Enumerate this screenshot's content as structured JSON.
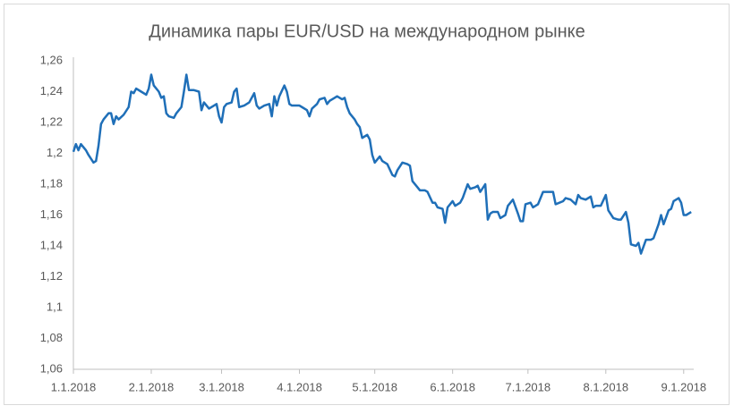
{
  "chart_data": {
    "type": "line",
    "title": "Динамика пары EUR/USD на международном рынке",
    "x": [
      0,
      1,
      2,
      3,
      5,
      6,
      8,
      9,
      10,
      11,
      12,
      14,
      15,
      16,
      17,
      18,
      20,
      22,
      23,
      24,
      25,
      27,
      29,
      30,
      31,
      32,
      34,
      35,
      36,
      37,
      38,
      40,
      41,
      43,
      44,
      45,
      46,
      48,
      50,
      51,
      52,
      54,
      56,
      57,
      58,
      59,
      60,
      61,
      63,
      64,
      65,
      66,
      68,
      70,
      72,
      73,
      74,
      76,
      78,
      79,
      80,
      81,
      82,
      84,
      85,
      86,
      87,
      90,
      91,
      93,
      94,
      95,
      97,
      98,
      100,
      101,
      102,
      104,
      105,
      107,
      108,
      109,
      110,
      112,
      113,
      114,
      115,
      117,
      118,
      119,
      120,
      122,
      123,
      125,
      127,
      128,
      129,
      131,
      133,
      134,
      135,
      137,
      138,
      140,
      141,
      143,
      144,
      145,
      147,
      148,
      149,
      151,
      152,
      154,
      155,
      157,
      158,
      160,
      161,
      162,
      164,
      165,
      166,
      167,
      169,
      170,
      172,
      173,
      175,
      177,
      178,
      179,
      180,
      182,
      183,
      185,
      187,
      189,
      191,
      192,
      195,
      196,
      198,
      200,
      201,
      202,
      204,
      206,
      207,
      208,
      210,
      212,
      213,
      215,
      217,
      218,
      220,
      221,
      222,
      224,
      225,
      226,
      228,
      230,
      231,
      233,
      234,
      235,
      237,
      238,
      239,
      241,
      242,
      243,
      244,
      246
    ],
    "series": [
      {
        "name": "EUR/USD",
        "color": "#1f6fb8",
        "values": [
          1.201,
          1.206,
          1.202,
          1.206,
          1.202,
          1.199,
          1.194,
          1.195,
          1.205,
          1.219,
          1.222,
          1.226,
          1.226,
          1.219,
          1.224,
          1.222,
          1.225,
          1.23,
          1.24,
          1.239,
          1.242,
          1.24,
          1.238,
          1.242,
          1.251,
          1.244,
          1.24,
          1.236,
          1.237,
          1.226,
          1.224,
          1.223,
          1.226,
          1.23,
          1.24,
          1.251,
          1.241,
          1.241,
          1.24,
          1.228,
          1.233,
          1.229,
          1.231,
          1.232,
          1.224,
          1.22,
          1.23,
          1.232,
          1.233,
          1.24,
          1.242,
          1.23,
          1.231,
          1.233,
          1.239,
          1.231,
          1.229,
          1.231,
          1.232,
          1.224,
          1.237,
          1.231,
          1.237,
          1.244,
          1.24,
          1.232,
          1.231,
          1.231,
          1.23,
          1.228,
          1.224,
          1.229,
          1.232,
          1.235,
          1.236,
          1.232,
          1.234,
          1.236,
          1.237,
          1.235,
          1.236,
          1.23,
          1.226,
          1.222,
          1.219,
          1.217,
          1.21,
          1.212,
          1.209,
          1.199,
          1.194,
          1.198,
          1.195,
          1.193,
          1.186,
          1.185,
          1.189,
          1.194,
          1.193,
          1.192,
          1.182,
          1.178,
          1.176,
          1.176,
          1.175,
          1.168,
          1.168,
          1.165,
          1.164,
          1.155,
          1.165,
          1.169,
          1.166,
          1.168,
          1.171,
          1.18,
          1.177,
          1.178,
          1.179,
          1.175,
          1.18,
          1.157,
          1.161,
          1.162,
          1.162,
          1.158,
          1.16,
          1.166,
          1.17,
          1.161,
          1.156,
          1.156,
          1.167,
          1.168,
          1.165,
          1.167,
          1.175,
          1.175,
          1.175,
          1.167,
          1.169,
          1.171,
          1.17,
          1.167,
          1.173,
          1.171,
          1.17,
          1.172,
          1.165,
          1.166,
          1.166,
          1.173,
          1.163,
          1.158,
          1.157,
          1.157,
          1.162,
          1.155,
          1.141,
          1.14,
          1.142,
          1.135,
          1.144,
          1.144,
          1.145,
          1.154,
          1.16,
          1.154,
          1.163,
          1.164,
          1.169,
          1.171,
          1.168,
          1.16,
          1.16,
          1.162
        ]
      }
    ],
    "xlim": [
      0,
      247
    ],
    "xticks": [
      {
        "value": 0,
        "label": "1.1.2018"
      },
      {
        "value": 31,
        "label": "2.1.2018"
      },
      {
        "value": 59,
        "label": "3.1.2018"
      },
      {
        "value": 90,
        "label": "4.1.2018"
      },
      {
        "value": 120,
        "label": "5.1.2018"
      },
      {
        "value": 151,
        "label": "6.1.2018"
      },
      {
        "value": 181,
        "label": "7.1.2018"
      },
      {
        "value": 212,
        "label": "8.1.2018"
      },
      {
        "value": 243,
        "label": "9.1.2018"
      }
    ],
    "ylim": [
      1.06,
      1.26
    ],
    "yticks": [
      {
        "value": 1.06,
        "label": "1,06"
      },
      {
        "value": 1.08,
        "label": "1,08"
      },
      {
        "value": 1.1,
        "label": "1,1"
      },
      {
        "value": 1.12,
        "label": "1,12"
      },
      {
        "value": 1.14,
        "label": "1,14"
      },
      {
        "value": 1.16,
        "label": "1,16"
      },
      {
        "value": 1.18,
        "label": "1,18"
      },
      {
        "value": 1.2,
        "label": "1,2"
      },
      {
        "value": 1.22,
        "label": "1,22"
      },
      {
        "value": 1.24,
        "label": "1,24"
      },
      {
        "value": 1.26,
        "label": "1,26"
      }
    ],
    "grid": false
  }
}
